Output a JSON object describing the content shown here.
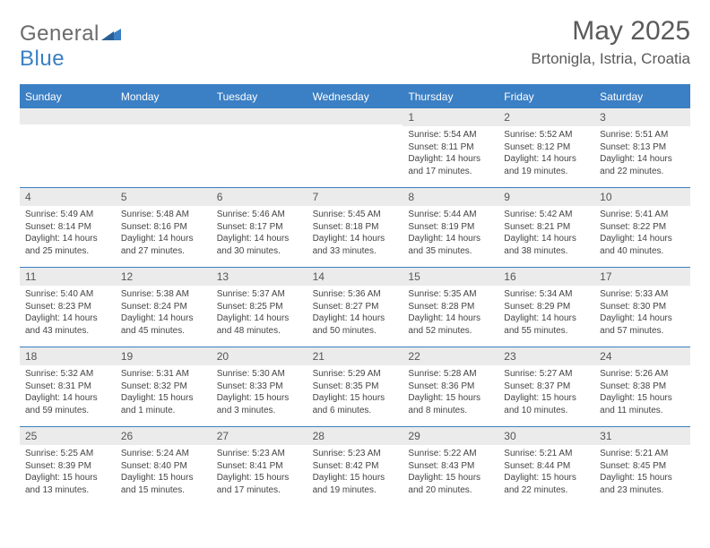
{
  "logo": {
    "text1": "General",
    "text2": "Blue"
  },
  "title": "May 2025",
  "subtitle": "Brtonigla, Istria, Croatia",
  "colors": {
    "accent": "#3b7fc4",
    "header_text": "#ffffff",
    "daynum_bg": "#ebebeb",
    "text": "#444444",
    "title_text": "#5a5a5a"
  },
  "day_names": [
    "Sunday",
    "Monday",
    "Tuesday",
    "Wednesday",
    "Thursday",
    "Friday",
    "Saturday"
  ],
  "weeks": [
    [
      {
        "n": "",
        "empty": true
      },
      {
        "n": "",
        "empty": true
      },
      {
        "n": "",
        "empty": true
      },
      {
        "n": "",
        "empty": true
      },
      {
        "n": "1",
        "sunrise": "5:54 AM",
        "sunset": "8:11 PM",
        "daylight": "14 hours and 17 minutes."
      },
      {
        "n": "2",
        "sunrise": "5:52 AM",
        "sunset": "8:12 PM",
        "daylight": "14 hours and 19 minutes."
      },
      {
        "n": "3",
        "sunrise": "5:51 AM",
        "sunset": "8:13 PM",
        "daylight": "14 hours and 22 minutes."
      }
    ],
    [
      {
        "n": "4",
        "sunrise": "5:49 AM",
        "sunset": "8:14 PM",
        "daylight": "14 hours and 25 minutes."
      },
      {
        "n": "5",
        "sunrise": "5:48 AM",
        "sunset": "8:16 PM",
        "daylight": "14 hours and 27 minutes."
      },
      {
        "n": "6",
        "sunrise": "5:46 AM",
        "sunset": "8:17 PM",
        "daylight": "14 hours and 30 minutes."
      },
      {
        "n": "7",
        "sunrise": "5:45 AM",
        "sunset": "8:18 PM",
        "daylight": "14 hours and 33 minutes."
      },
      {
        "n": "8",
        "sunrise": "5:44 AM",
        "sunset": "8:19 PM",
        "daylight": "14 hours and 35 minutes."
      },
      {
        "n": "9",
        "sunrise": "5:42 AM",
        "sunset": "8:21 PM",
        "daylight": "14 hours and 38 minutes."
      },
      {
        "n": "10",
        "sunrise": "5:41 AM",
        "sunset": "8:22 PM",
        "daylight": "14 hours and 40 minutes."
      }
    ],
    [
      {
        "n": "11",
        "sunrise": "5:40 AM",
        "sunset": "8:23 PM",
        "daylight": "14 hours and 43 minutes."
      },
      {
        "n": "12",
        "sunrise": "5:38 AM",
        "sunset": "8:24 PM",
        "daylight": "14 hours and 45 minutes."
      },
      {
        "n": "13",
        "sunrise": "5:37 AM",
        "sunset": "8:25 PM",
        "daylight": "14 hours and 48 minutes."
      },
      {
        "n": "14",
        "sunrise": "5:36 AM",
        "sunset": "8:27 PM",
        "daylight": "14 hours and 50 minutes."
      },
      {
        "n": "15",
        "sunrise": "5:35 AM",
        "sunset": "8:28 PM",
        "daylight": "14 hours and 52 minutes."
      },
      {
        "n": "16",
        "sunrise": "5:34 AM",
        "sunset": "8:29 PM",
        "daylight": "14 hours and 55 minutes."
      },
      {
        "n": "17",
        "sunrise": "5:33 AM",
        "sunset": "8:30 PM",
        "daylight": "14 hours and 57 minutes."
      }
    ],
    [
      {
        "n": "18",
        "sunrise": "5:32 AM",
        "sunset": "8:31 PM",
        "daylight": "14 hours and 59 minutes."
      },
      {
        "n": "19",
        "sunrise": "5:31 AM",
        "sunset": "8:32 PM",
        "daylight": "15 hours and 1 minute."
      },
      {
        "n": "20",
        "sunrise": "5:30 AM",
        "sunset": "8:33 PM",
        "daylight": "15 hours and 3 minutes."
      },
      {
        "n": "21",
        "sunrise": "5:29 AM",
        "sunset": "8:35 PM",
        "daylight": "15 hours and 6 minutes."
      },
      {
        "n": "22",
        "sunrise": "5:28 AM",
        "sunset": "8:36 PM",
        "daylight": "15 hours and 8 minutes."
      },
      {
        "n": "23",
        "sunrise": "5:27 AM",
        "sunset": "8:37 PM",
        "daylight": "15 hours and 10 minutes."
      },
      {
        "n": "24",
        "sunrise": "5:26 AM",
        "sunset": "8:38 PM",
        "daylight": "15 hours and 11 minutes."
      }
    ],
    [
      {
        "n": "25",
        "sunrise": "5:25 AM",
        "sunset": "8:39 PM",
        "daylight": "15 hours and 13 minutes."
      },
      {
        "n": "26",
        "sunrise": "5:24 AM",
        "sunset": "8:40 PM",
        "daylight": "15 hours and 15 minutes."
      },
      {
        "n": "27",
        "sunrise": "5:23 AM",
        "sunset": "8:41 PM",
        "daylight": "15 hours and 17 minutes."
      },
      {
        "n": "28",
        "sunrise": "5:23 AM",
        "sunset": "8:42 PM",
        "daylight": "15 hours and 19 minutes."
      },
      {
        "n": "29",
        "sunrise": "5:22 AM",
        "sunset": "8:43 PM",
        "daylight": "15 hours and 20 minutes."
      },
      {
        "n": "30",
        "sunrise": "5:21 AM",
        "sunset": "8:44 PM",
        "daylight": "15 hours and 22 minutes."
      },
      {
        "n": "31",
        "sunrise": "5:21 AM",
        "sunset": "8:45 PM",
        "daylight": "15 hours and 23 minutes."
      }
    ]
  ],
  "labels": {
    "sunrise": "Sunrise:",
    "sunset": "Sunset:",
    "daylight": "Daylight:"
  }
}
